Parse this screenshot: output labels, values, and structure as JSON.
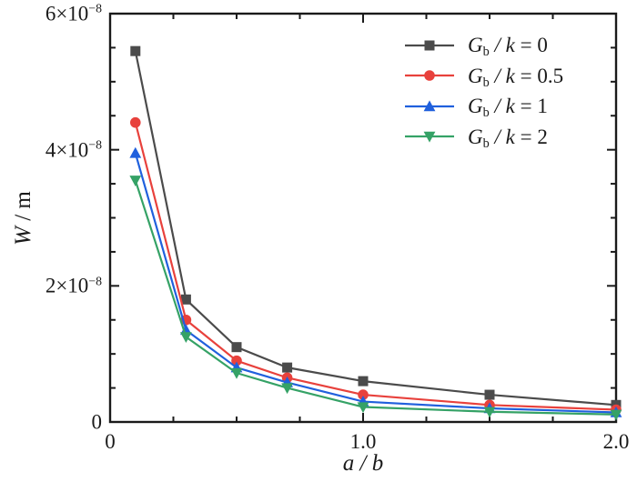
{
  "figure": {
    "kind": "scientific-line-chart",
    "background": "#ffffff",
    "frame_color": "#1a1a1a",
    "text_color": "#1a1a1a"
  },
  "chart_data": {
    "type": "line",
    "title": "",
    "xlabel": "a / b",
    "ylabel": "W / m",
    "xlim": [
      0,
      2.0
    ],
    "ylim": [
      0,
      6e-08
    ],
    "grid": false,
    "legend_position": "upper-right-inside",
    "x_major_ticks": [
      0,
      1.0,
      2.0
    ],
    "x_minor_step": 0.25,
    "y_major_ticks": [
      0,
      2e-08,
      4e-08,
      6e-08
    ],
    "y_minor_step": 5e-09,
    "x": [
      0.1,
      0.3,
      0.5,
      0.7,
      1.0,
      1.5,
      2.0
    ],
    "series": [
      {
        "name": "Gb/k = 0",
        "color": "#4b4b4b",
        "marker": "square",
        "values": [
          5.45e-08,
          1.8e-08,
          1.1e-08,
          8e-09,
          6e-09,
          4e-09,
          2.5e-09
        ],
        "legend_segments": [
          {
            "t": "G",
            "i": true
          },
          {
            "t": "b",
            "sub": true
          },
          {
            "t": " / ",
            "i": true
          },
          {
            "t": "k",
            "i": true
          },
          {
            "t": " = 0"
          }
        ]
      },
      {
        "name": "Gb/k = 0.5",
        "color": "#e8413c",
        "marker": "circle",
        "values": [
          4.4e-08,
          1.5e-08,
          9e-09,
          6.5e-09,
          4e-09,
          2.5e-09,
          1.8e-09
        ],
        "legend_segments": [
          {
            "t": "G",
            "i": true
          },
          {
            "t": "b",
            "sub": true
          },
          {
            "t": " / ",
            "i": true
          },
          {
            "t": "k",
            "i": true
          },
          {
            "t": " = 0.5"
          }
        ]
      },
      {
        "name": "Gb/k = 1",
        "color": "#2060dd",
        "marker": "triangle-up",
        "values": [
          3.95e-08,
          1.35e-08,
          8e-09,
          5.8e-09,
          3e-09,
          2e-09,
          1.4e-09
        ],
        "legend_segments": [
          {
            "t": "G",
            "i": true
          },
          {
            "t": "b",
            "sub": true
          },
          {
            "t": " / ",
            "i": true
          },
          {
            "t": "k",
            "i": true
          },
          {
            "t": " = 1"
          }
        ]
      },
      {
        "name": "Gb/k = 2",
        "color": "#35a266",
        "marker": "triangle-down",
        "values": [
          3.55e-08,
          1.25e-08,
          7.2e-09,
          5e-09,
          2.2e-09,
          1.5e-09,
          1.1e-09
        ],
        "legend_segments": [
          {
            "t": "G",
            "i": true
          },
          {
            "t": "b",
            "sub": true
          },
          {
            "t": " / ",
            "i": true
          },
          {
            "t": "k",
            "i": true
          },
          {
            "t": " = 2"
          }
        ]
      }
    ]
  },
  "labels": {
    "x_tick_labels": [
      {
        "v": 0,
        "text": "0"
      },
      {
        "v": 1.0,
        "text": "1.0"
      },
      {
        "v": 2.0,
        "text": "2.0"
      }
    ],
    "y_tick_labels": [
      {
        "v": 0,
        "segments": [
          {
            "t": "0"
          }
        ]
      },
      {
        "v": 2e-08,
        "segments": [
          {
            "t": "2×10"
          },
          {
            "t": "−8",
            "sup": true
          }
        ]
      },
      {
        "v": 4e-08,
        "segments": [
          {
            "t": "4×10"
          },
          {
            "t": "−8",
            "sup": true
          }
        ]
      },
      {
        "v": 6e-08,
        "segments": [
          {
            "t": "6×10"
          },
          {
            "t": "−8",
            "sup": true
          }
        ]
      }
    ],
    "xlabel_segments": [
      {
        "t": "a",
        "i": true
      },
      {
        "t": " / ",
        "i": true
      },
      {
        "t": "b",
        "i": true
      }
    ],
    "ylabel_segments": [
      {
        "t": "W",
        "i": true
      },
      {
        "t": " / m"
      }
    ]
  }
}
